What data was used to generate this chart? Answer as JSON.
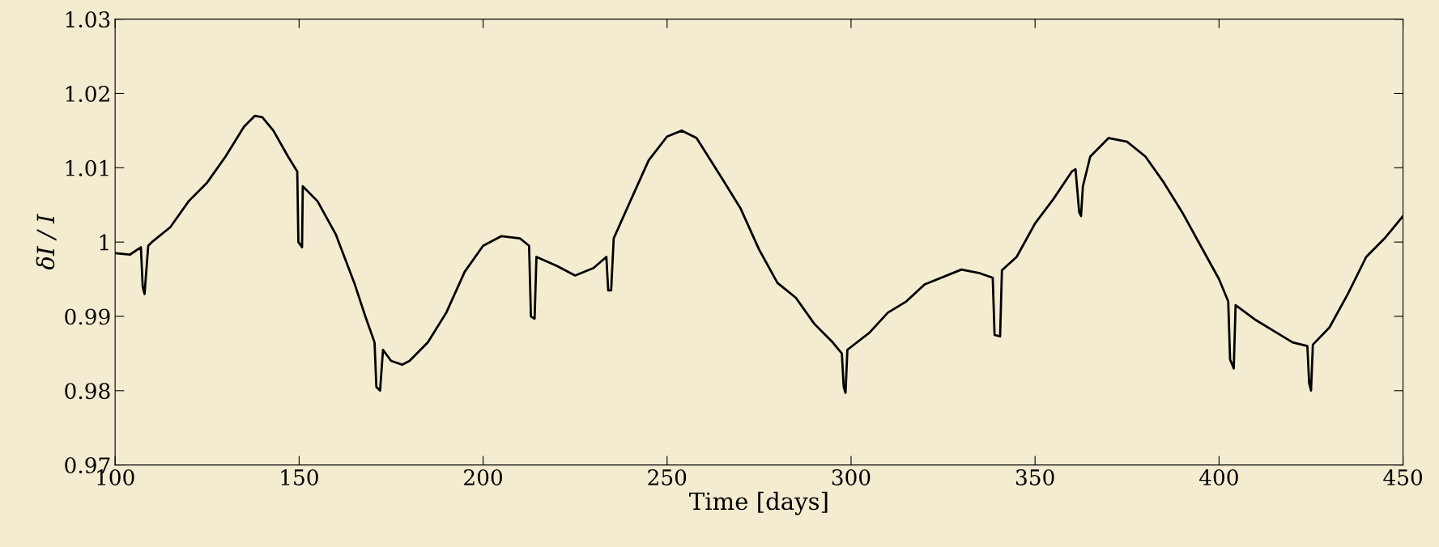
{
  "chart_data": {
    "type": "line",
    "xlabel": "Time [days]",
    "ylabel": "δI / I",
    "xlim": [
      100,
      450
    ],
    "ylim": [
      0.97,
      1.03
    ],
    "xticks": [
      100,
      150,
      200,
      250,
      300,
      350,
      400,
      450
    ],
    "yticks": [
      0.97,
      0.98,
      0.99,
      1,
      1.01,
      1.02,
      1.03
    ],
    "grid": false,
    "legend": false,
    "marker": "none",
    "line_style": "solid",
    "series": [
      {
        "color": "#000000",
        "x": [
          100,
          104,
          107,
          107.5,
          108,
          109,
          110,
          115,
          120,
          125,
          130,
          135,
          138,
          140,
          143,
          147,
          149.5,
          149.8,
          150.8,
          151,
          155,
          160,
          165,
          168,
          170.5,
          171,
          172,
          172.8,
          175,
          178,
          180,
          185,
          190,
          195,
          200,
          205,
          210,
          212.5,
          213,
          214,
          214.5,
          220,
          225,
          230,
          233.5,
          234,
          234.8,
          235.5,
          240,
          245,
          250,
          254,
          258,
          265,
          270,
          275,
          280,
          285,
          290,
          295,
          297.5,
          298,
          298.5,
          299,
          305,
          310,
          315,
          320,
          330,
          335,
          338.5,
          339,
          340.5,
          341,
          345,
          350,
          355,
          360,
          361,
          362,
          362.5,
          363,
          365,
          370,
          375,
          380,
          385,
          390,
          395,
          400,
          402.5,
          403,
          404,
          404.5,
          410,
          415,
          420,
          424,
          424.5,
          425,
          425.5,
          430,
          435,
          440,
          445,
          450
        ],
        "values": [
          0.9985,
          0.9983,
          0.9993,
          0.994,
          0.993,
          0.9995,
          1.0,
          1.002,
          1.0055,
          1.008,
          1.0115,
          1.0155,
          1.017,
          1.0168,
          1.015,
          1.0115,
          1.0095,
          1.0,
          0.9993,
          1.0075,
          1.0055,
          1.001,
          0.9945,
          0.99,
          0.9865,
          0.9805,
          0.98,
          0.9855,
          0.984,
          0.9835,
          0.984,
          0.9865,
          0.9905,
          0.996,
          0.9995,
          1.0008,
          1.0005,
          0.9995,
          0.99,
          0.9897,
          0.998,
          0.9968,
          0.9955,
          0.9965,
          0.998,
          0.9935,
          0.9935,
          1.0005,
          1.0055,
          1.011,
          1.0142,
          1.015,
          1.014,
          1.0085,
          1.0045,
          0.999,
          0.9945,
          0.9925,
          0.989,
          0.9865,
          0.985,
          0.9805,
          0.9797,
          0.9855,
          0.9878,
          0.9905,
          0.992,
          0.9943,
          0.9963,
          0.9958,
          0.9952,
          0.9875,
          0.9873,
          0.9962,
          0.998,
          1.0025,
          1.0058,
          1.0095,
          1.0098,
          1.004,
          1.0035,
          1.0075,
          1.0115,
          1.014,
          1.0135,
          1.0115,
          1.008,
          1.004,
          0.9995,
          0.995,
          0.992,
          0.9842,
          0.983,
          0.9915,
          0.9895,
          0.988,
          0.9865,
          0.986,
          0.981,
          0.98,
          0.9862,
          0.9885,
          0.993,
          0.998,
          1.0005,
          1.0035
        ]
      }
    ]
  }
}
